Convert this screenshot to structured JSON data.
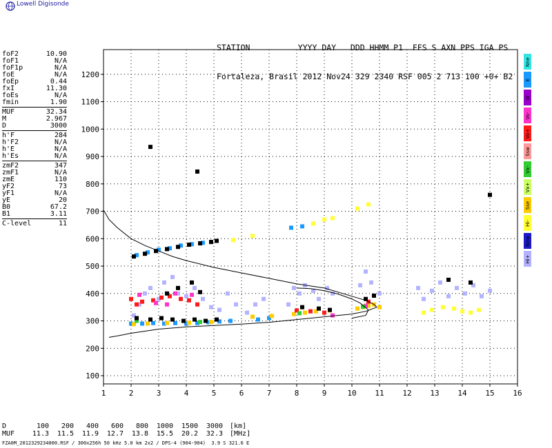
{
  "app": {
    "title": "Lowell Digisonde",
    "logo_icon": "globe-icon"
  },
  "station": {
    "header_line1": "STATION          YYYY DAY   DDD HHMM P1  FFS S AXN PPS IGA PS",
    "header_line2": "Fortaleza, Brasil 2012 Nov24 329 2340 RSF 005 2 713 100 +0+ B2"
  },
  "params": {
    "group1": [
      {
        "label": "foF2",
        "value": "10.90"
      },
      {
        "label": "foF1",
        "value": "N/A"
      },
      {
        "label": "foF1p",
        "value": "N/A"
      },
      {
        "label": "foE",
        "value": "N/A"
      },
      {
        "label": "foEp",
        "value": "0.44"
      },
      {
        "label": "fxI",
        "value": "11.30"
      },
      {
        "label": "foEs",
        "value": "N/A"
      },
      {
        "label": "fmin",
        "value": "1.90"
      }
    ],
    "group2": [
      {
        "label": "MUF",
        "value": "32.34"
      },
      {
        "label": "M",
        "value": "2.967"
      },
      {
        "label": "D",
        "value": "3000"
      }
    ],
    "group3": [
      {
        "label": "h'F",
        "value": "284"
      },
      {
        "label": "h'F2",
        "value": "N/A"
      },
      {
        "label": "h'E",
        "value": "N/A"
      },
      {
        "label": "h'Es",
        "value": "N/A"
      }
    ],
    "group4": [
      {
        "label": "zmF2",
        "value": "347"
      },
      {
        "label": "zmF1",
        "value": "N/A"
      },
      {
        "label": "zmE",
        "value": "110"
      },
      {
        "label": "yF2",
        "value": "73"
      },
      {
        "label": "yF1",
        "value": "N/A"
      },
      {
        "label": "yE",
        "value": "20"
      },
      {
        "label": "B0",
        "value": "67.2"
      },
      {
        "label": "B1",
        "value": "3.11"
      }
    ],
    "group5": [
      {
        "label": "C-level",
        "value": "11"
      }
    ]
  },
  "legend": [
    {
      "label": "Nne",
      "color": "#33e6e6"
    },
    {
      "label": "E",
      "color": "#1a99ff"
    },
    {
      "label": "W",
      "color": "#9900cc"
    },
    {
      "label": "Vo-",
      "color": "#ff33cc"
    },
    {
      "label": "Vo+",
      "color": "#ff1a1a"
    },
    {
      "label": "Ssw",
      "color": "#ff9999"
    },
    {
      "label": "Vx-",
      "color": "#33cc33"
    },
    {
      "label": "Vx+",
      "color": "#ccff66"
    },
    {
      "label": "Sse",
      "color": "#ffcc00"
    },
    {
      "label": "Hi-",
      "color": "#ffff33"
    },
    {
      "label": "Nnw",
      "color": "#1a1acc"
    },
    {
      "label": "Hi+",
      "color": "#b3b3ff"
    }
  ],
  "bottom_table": {
    "row1_label": "D",
    "row1_values": [
      "100",
      "200",
      "400",
      "600",
      "800",
      "1000",
      "1500",
      "3000"
    ],
    "row1_unit": "[km]",
    "row2_label": "MUF",
    "row2_values": [
      "11.3",
      "11.5",
      "11.9",
      "12.7",
      "13.8",
      "15.5",
      "20.2",
      "32.3"
    ],
    "row2_unit": "[MHz]"
  },
  "footer": "FZA0M_2012329234000.RSF / 300x256h 50 kHz 5.0 km 2x2 / DPS-4 (904-904)  3.9 S 321.6 E",
  "chart_data": {
    "type": "scatter",
    "xlim": [
      1,
      16
    ],
    "ylim": [
      70,
      1290
    ],
    "x_ticks": [
      1,
      2,
      3,
      4,
      5,
      6,
      7,
      8,
      9,
      10,
      11,
      12,
      13,
      14,
      15,
      16
    ],
    "y_ticks": [
      100,
      200,
      300,
      400,
      500,
      600,
      700,
      800,
      900,
      1000,
      1100,
      1200
    ],
    "grid": true,
    "series": [
      {
        "color": "#b3b3ff",
        "points": [
          [
            2.1,
            320
          ],
          [
            2.3,
            360
          ],
          [
            2.5,
            400
          ],
          [
            2.7,
            420
          ],
          [
            3.0,
            380
          ],
          [
            3.2,
            440
          ],
          [
            3.5,
            460
          ],
          [
            3.7,
            400
          ],
          [
            4.0,
            390
          ],
          [
            4.3,
            420
          ],
          [
            4.6,
            380
          ],
          [
            4.9,
            350
          ],
          [
            5.2,
            340
          ],
          [
            5.5,
            400
          ],
          [
            5.8,
            360
          ],
          [
            6.2,
            330
          ],
          [
            6.5,
            360
          ],
          [
            6.8,
            380
          ],
          [
            7.7,
            360
          ],
          [
            7.9,
            420
          ],
          [
            8.1,
            400
          ],
          [
            8.3,
            430
          ],
          [
            8.6,
            410
          ],
          [
            8.8,
            380
          ],
          [
            9.1,
            420
          ],
          [
            9.3,
            400
          ],
          [
            10.3,
            430
          ],
          [
            10.5,
            480
          ],
          [
            10.7,
            440
          ],
          [
            11.0,
            400
          ],
          [
            12.4,
            420
          ],
          [
            12.6,
            380
          ],
          [
            12.9,
            410
          ],
          [
            13.2,
            440
          ],
          [
            13.5,
            390
          ],
          [
            13.8,
            420
          ],
          [
            14.1,
            400
          ],
          [
            14.4,
            430
          ],
          [
            14.7,
            390
          ],
          [
            15.0,
            410
          ]
        ]
      },
      {
        "color": "#1a99ff",
        "points": [
          [
            2.0,
            290
          ],
          [
            2.4,
            290
          ],
          [
            2.8,
            292
          ],
          [
            3.2,
            290
          ],
          [
            3.6,
            292
          ],
          [
            4.0,
            290
          ],
          [
            4.4,
            292
          ],
          [
            4.8,
            295
          ],
          [
            5.2,
            298
          ],
          [
            5.6,
            300
          ],
          [
            6.6,
            305
          ],
          [
            7.0,
            310
          ],
          [
            2.2,
            540
          ],
          [
            2.6,
            550
          ],
          [
            3.0,
            560
          ],
          [
            3.4,
            565
          ],
          [
            3.8,
            575
          ],
          [
            4.2,
            580
          ],
          [
            4.6,
            585
          ],
          [
            7.8,
            640
          ],
          [
            8.2,
            645
          ]
        ]
      },
      {
        "color": "#ffcc00",
        "points": [
          [
            2.1,
            288
          ],
          [
            2.6,
            290
          ],
          [
            3.3,
            292
          ],
          [
            4.1,
            293
          ],
          [
            4.9,
            296
          ],
          [
            6.4,
            315
          ],
          [
            7.1,
            318
          ],
          [
            7.9,
            325
          ],
          [
            8.3,
            330
          ],
          [
            8.7,
            335
          ],
          [
            9.2,
            338
          ],
          [
            10.2,
            345
          ],
          [
            10.4,
            350
          ],
          [
            10.6,
            355
          ],
          [
            10.8,
            360
          ],
          [
            11.0,
            350
          ]
        ]
      },
      {
        "color": "#ff1a1a",
        "points": [
          [
            2.0,
            380
          ],
          [
            2.2,
            360
          ],
          [
            2.4,
            370
          ],
          [
            2.8,
            375
          ],
          [
            3.1,
            385
          ],
          [
            3.4,
            390
          ],
          [
            3.8,
            380
          ],
          [
            4.1,
            375
          ],
          [
            4.4,
            360
          ],
          [
            8.0,
            338
          ],
          [
            8.5,
            335
          ],
          [
            9.0,
            330
          ],
          [
            10.6,
            370
          ]
        ]
      },
      {
        "color": "#ff33cc",
        "points": [
          [
            2.3,
            395
          ],
          [
            2.9,
            365
          ],
          [
            3.3,
            360
          ],
          [
            3.6,
            400
          ],
          [
            4.2,
            395
          ],
          [
            9.3,
            320
          ],
          [
            10.5,
            355
          ]
        ]
      },
      {
        "color": "#ffff33",
        "points": [
          [
            8.6,
            655
          ],
          [
            9.0,
            670
          ],
          [
            9.3,
            675
          ],
          [
            10.2,
            710
          ],
          [
            10.6,
            725
          ],
          [
            12.6,
            330
          ],
          [
            12.9,
            340
          ],
          [
            13.3,
            350
          ],
          [
            13.7,
            345
          ],
          [
            14.0,
            335
          ],
          [
            14.3,
            330
          ],
          [
            14.6,
            340
          ],
          [
            5.7,
            595
          ],
          [
            6.4,
            610
          ]
        ]
      },
      {
        "color": "#33cc33",
        "points": [
          [
            2.2,
            300
          ],
          [
            4.5,
            296
          ],
          [
            8.1,
            328
          ],
          [
            10.4,
            352
          ]
        ]
      },
      {
        "color": "#000000",
        "points": [
          [
            2.1,
            535
          ],
          [
            2.5,
            545
          ],
          [
            2.9,
            555
          ],
          [
            3.3,
            562
          ],
          [
            3.7,
            570
          ],
          [
            4.1,
            578
          ],
          [
            4.5,
            583
          ],
          [
            4.9,
            588
          ],
          [
            5.1,
            592
          ],
          [
            2.2,
            310
          ],
          [
            2.7,
            305
          ],
          [
            3.1,
            310
          ],
          [
            3.5,
            305
          ],
          [
            3.9,
            300
          ],
          [
            4.3,
            305
          ],
          [
            4.7,
            300
          ],
          [
            5.1,
            305
          ],
          [
            3.3,
            400
          ],
          [
            3.7,
            420
          ],
          [
            4.2,
            440
          ],
          [
            4.5,
            405
          ],
          [
            8.2,
            350
          ],
          [
            8.8,
            345
          ],
          [
            9.2,
            340
          ],
          [
            10.5,
            380
          ],
          [
            10.8,
            392
          ],
          [
            13.5,
            450
          ],
          [
            14.3,
            440
          ],
          [
            2.7,
            935
          ],
          [
            4.4,
            845
          ],
          [
            15.0,
            760
          ]
        ]
      }
    ],
    "curves": [
      {
        "name": "",
        "points": [
          [
            1.0,
            705
          ],
          [
            1.2,
            670
          ],
          [
            1.5,
            640
          ],
          [
            2.0,
            600
          ],
          [
            2.5,
            575
          ],
          [
            3.0,
            555
          ],
          [
            3.5,
            535
          ],
          [
            4.0,
            520
          ],
          [
            5.0,
            495
          ],
          [
            6.0,
            475
          ],
          [
            7.0,
            455
          ],
          [
            8.0,
            435
          ],
          [
            9.0,
            420
          ],
          [
            9.5,
            405
          ],
          [
            10.0,
            390
          ],
          [
            10.5,
            375
          ],
          [
            10.8,
            360
          ],
          [
            10.9,
            350
          ],
          [
            10.5,
            335
          ],
          [
            10.0,
            325
          ],
          [
            9.0,
            315
          ],
          [
            8.0,
            305
          ],
          [
            7.0,
            295
          ],
          [
            6.0,
            288
          ],
          [
            5.0,
            283
          ],
          [
            4.0,
            278
          ],
          [
            3.0,
            270
          ],
          [
            2.0,
            255
          ],
          [
            1.5,
            245
          ],
          [
            1.2,
            240
          ]
        ]
      },
      {
        "name": "",
        "points": [
          [
            8.0,
            420
          ],
          [
            8.5,
            418
          ],
          [
            9.0,
            410
          ],
          [
            9.5,
            398
          ],
          [
            10.0,
            380
          ],
          [
            10.3,
            365
          ],
          [
            10.6,
            340
          ],
          [
            10.5,
            320
          ],
          [
            10.0,
            310
          ]
        ]
      }
    ]
  }
}
